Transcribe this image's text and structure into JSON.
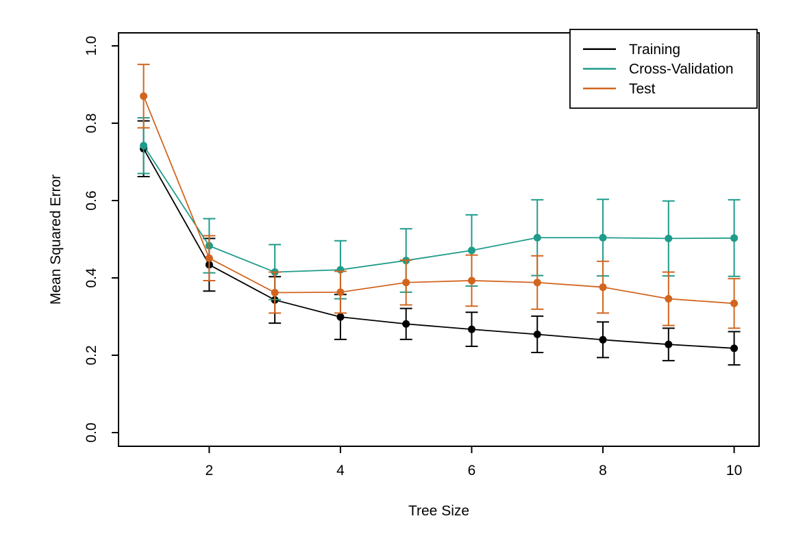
{
  "figure": {
    "background": "#FFFFFF",
    "axis_color": "#000000",
    "text_color": "#000000"
  },
  "chart_data": {
    "type": "line",
    "title": "",
    "xlabel": "Tree Size",
    "ylabel": "Mean Squared Error",
    "x": [
      1,
      2,
      3,
      4,
      5,
      6,
      7,
      8,
      9,
      10
    ],
    "xlim": [
      1,
      10
    ],
    "ylim": [
      0.0,
      1.0
    ],
    "grid": false,
    "marker": "filled-circle",
    "error_bars": true,
    "xticks": {
      "values": [
        2,
        4,
        6,
        8,
        10
      ],
      "labels": [
        "2",
        "4",
        "6",
        "8",
        "10"
      ]
    },
    "yticks": {
      "values": [
        0.0,
        0.2,
        0.4,
        0.6,
        0.8,
        1.0
      ],
      "labels": [
        "0.0",
        "0.2",
        "0.4",
        "0.6",
        "0.8",
        "1.0"
      ]
    },
    "legend": {
      "position": "top-right",
      "border": true,
      "entries": [
        "Training",
        "Cross-Validation",
        "Test"
      ]
    },
    "series": [
      {
        "name": "Training",
        "color": "#000000",
        "values": [
          0.734,
          0.434,
          0.343,
          0.299,
          0.281,
          0.267,
          0.254,
          0.24,
          0.228,
          0.218
        ],
        "errors": [
          0.072,
          0.068,
          0.06,
          0.058,
          0.04,
          0.044,
          0.047,
          0.046,
          0.042,
          0.043
        ]
      },
      {
        "name": "Cross-Validation",
        "color": "#1E9B8A",
        "values": [
          0.742,
          0.483,
          0.415,
          0.421,
          0.445,
          0.471,
          0.504,
          0.504,
          0.502,
          0.503
        ],
        "errors": [
          0.072,
          0.07,
          0.071,
          0.075,
          0.082,
          0.092,
          0.098,
          0.099,
          0.097,
          0.099
        ]
      },
      {
        "name": "Test",
        "color": "#D2641E",
        "values": [
          0.87,
          0.451,
          0.362,
          0.363,
          0.388,
          0.393,
          0.388,
          0.376,
          0.346,
          0.334
        ],
        "errors": [
          0.082,
          0.058,
          0.053,
          0.054,
          0.058,
          0.066,
          0.069,
          0.067,
          0.069,
          0.064
        ]
      }
    ]
  }
}
